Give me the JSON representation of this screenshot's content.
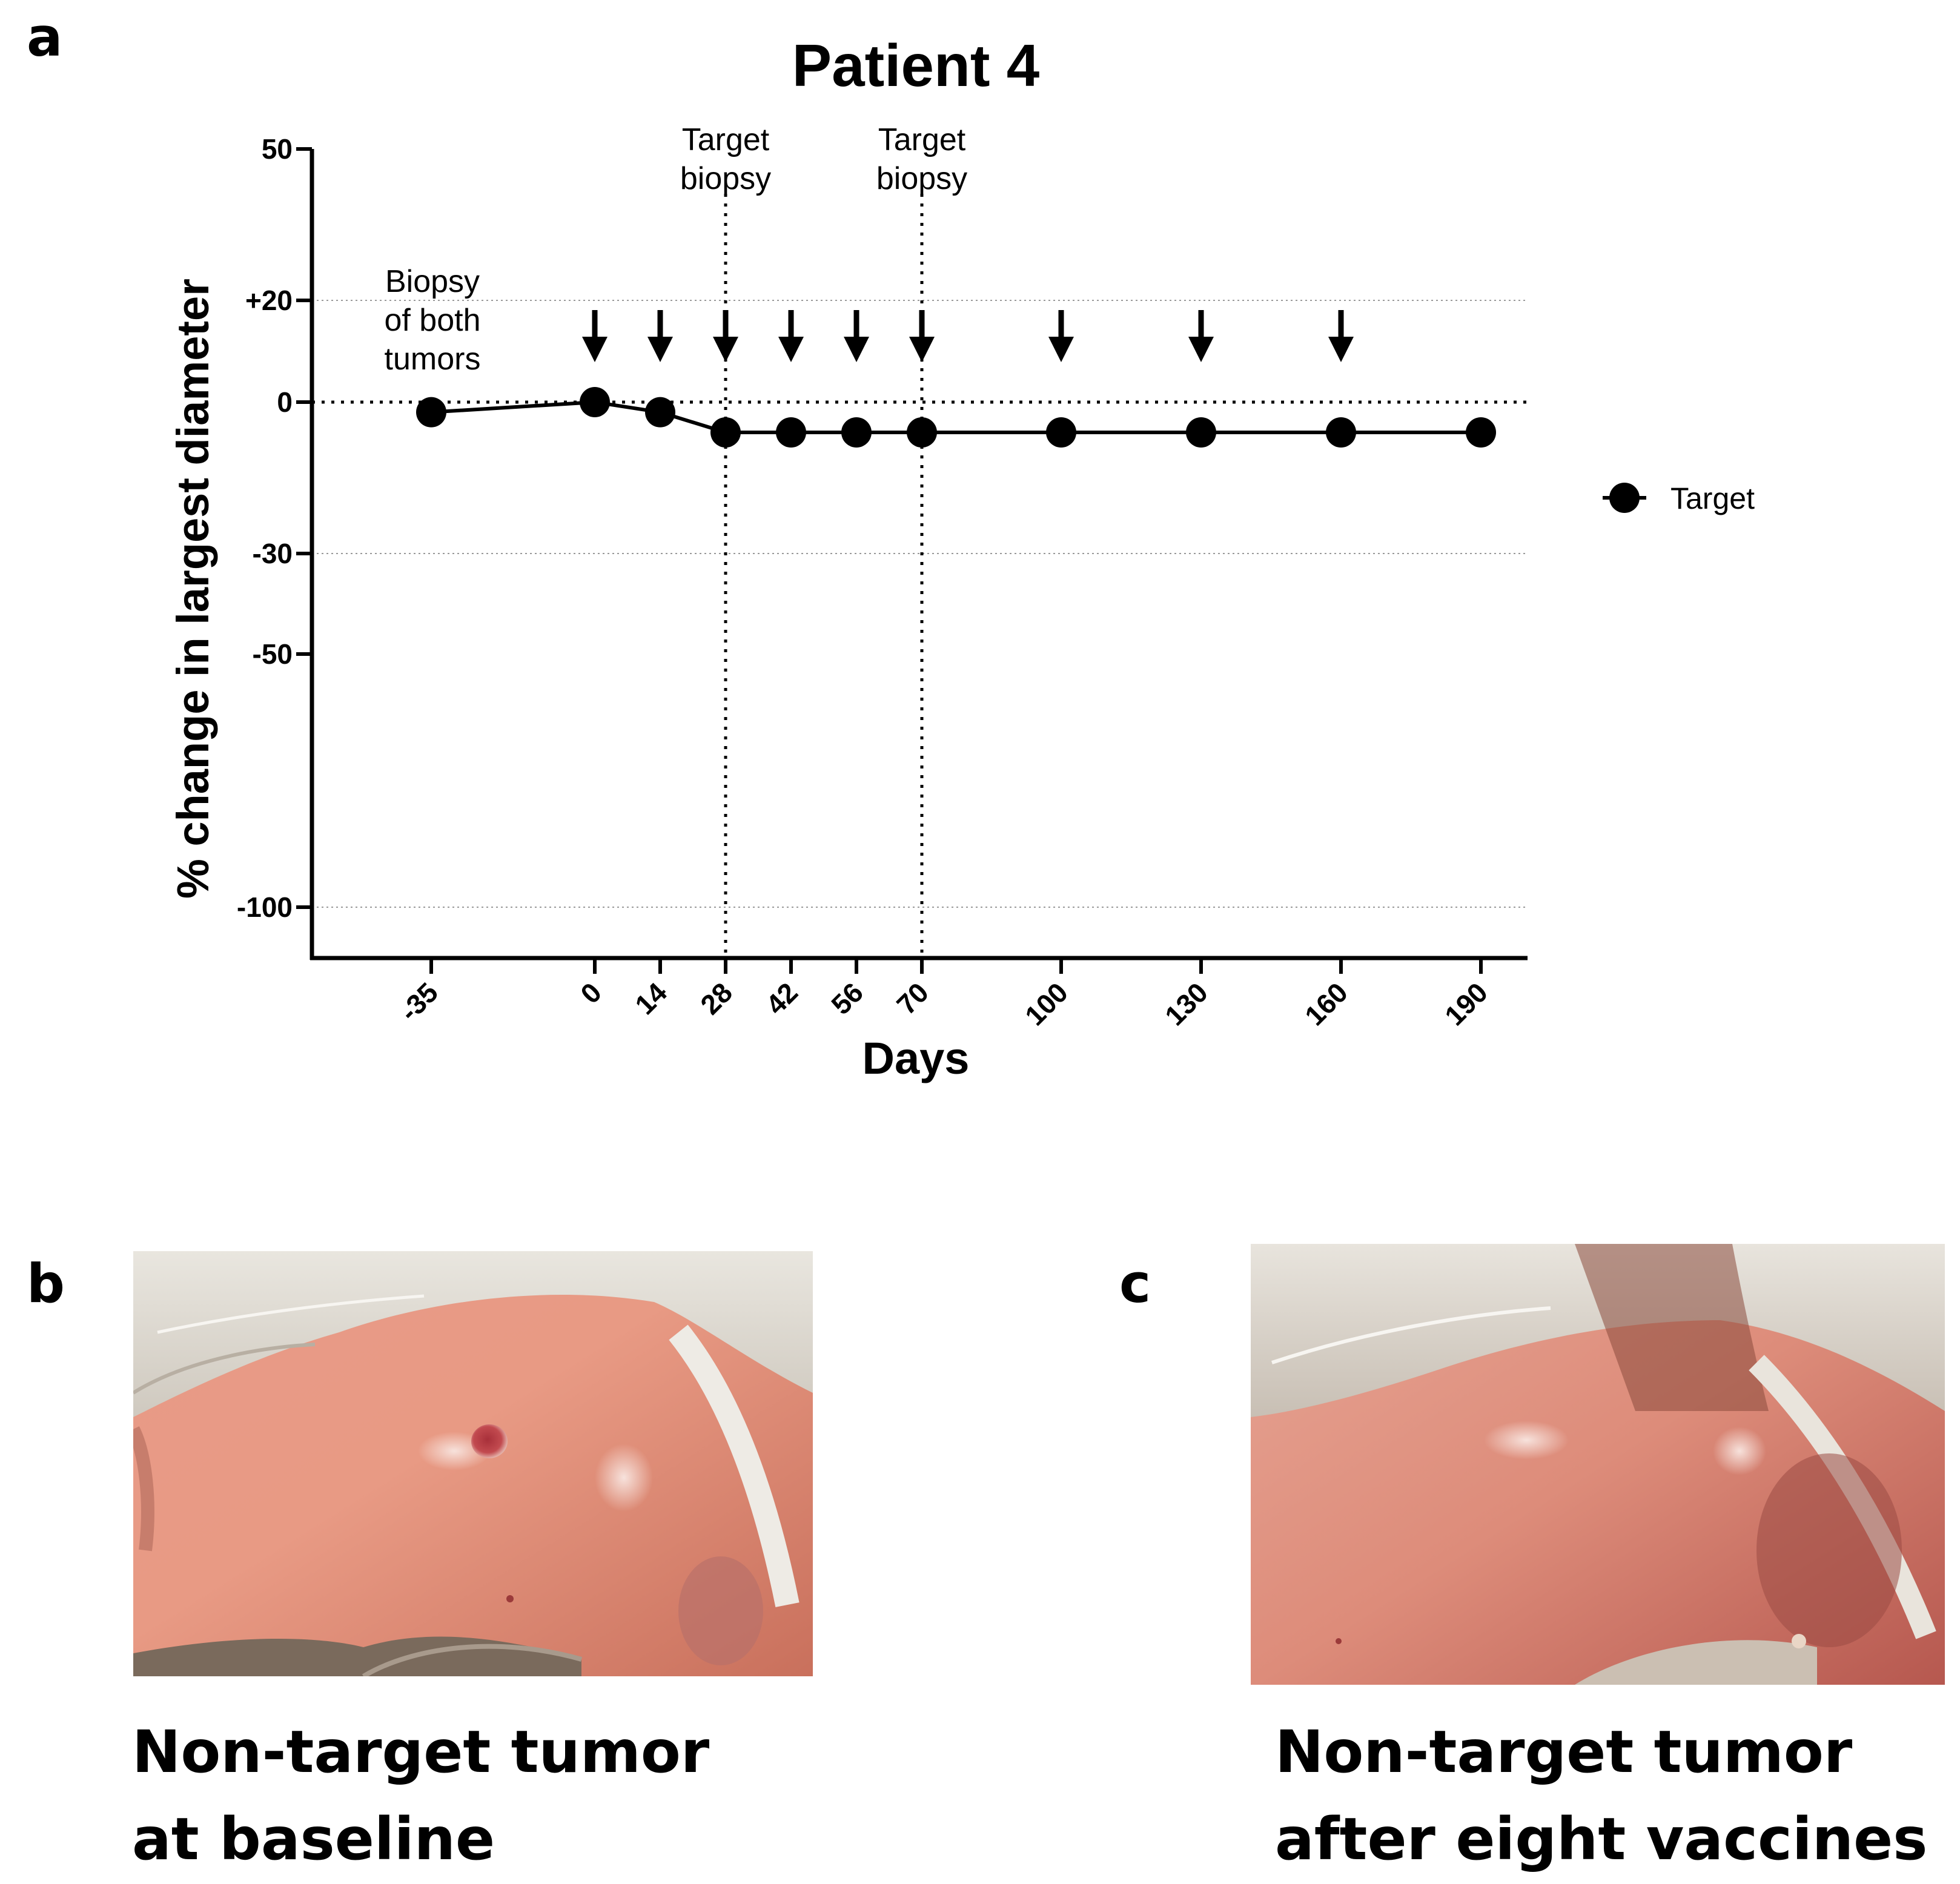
{
  "panels": {
    "a": "a",
    "b": "b",
    "c": "c"
  },
  "chart_data": {
    "type": "line",
    "title": "Patient 4",
    "xlabel": "Days",
    "ylabel": "% change in largest diameter",
    "x_categories": [
      "-35",
      "0",
      "14",
      "28",
      "42",
      "56",
      "70",
      "100",
      "130",
      "160",
      "190"
    ],
    "y_ticks": [
      "50",
      "+20",
      "0",
      "-30",
      "-50",
      "-100"
    ],
    "ylim": [
      -110,
      50
    ],
    "grid": "horizontal dotted at +20, -30, -100; dotted reference line at 0",
    "series": [
      {
        "name": "Target",
        "x": [
          -35,
          0,
          14,
          28,
          42,
          56,
          70,
          100,
          130,
          160,
          190
        ],
        "y": [
          -2,
          0,
          -2,
          -6,
          -6,
          -6,
          -6,
          -6,
          -6,
          -6,
          -6
        ]
      }
    ],
    "vaccine_arrows_days": [
      0,
      14,
      28,
      42,
      56,
      70,
      100,
      130,
      160
    ],
    "vertical_markers": [
      {
        "day": 28,
        "label_line1": "Target",
        "label_line2": "biopsy"
      },
      {
        "day": 70,
        "label_line1": "Target",
        "label_line2": "biopsy"
      }
    ],
    "annotation": {
      "day": -35,
      "line1": "Biopsy",
      "line2": "of both",
      "line3": "tumors"
    },
    "legend": {
      "position": "right",
      "label": "Target"
    }
  },
  "photos": {
    "b": {
      "caption_line1": "Non-target tumor",
      "caption_line2": "at baseline"
    },
    "c": {
      "caption_line1": "Non-target tumor",
      "caption_line2": "after eight vaccines"
    }
  }
}
